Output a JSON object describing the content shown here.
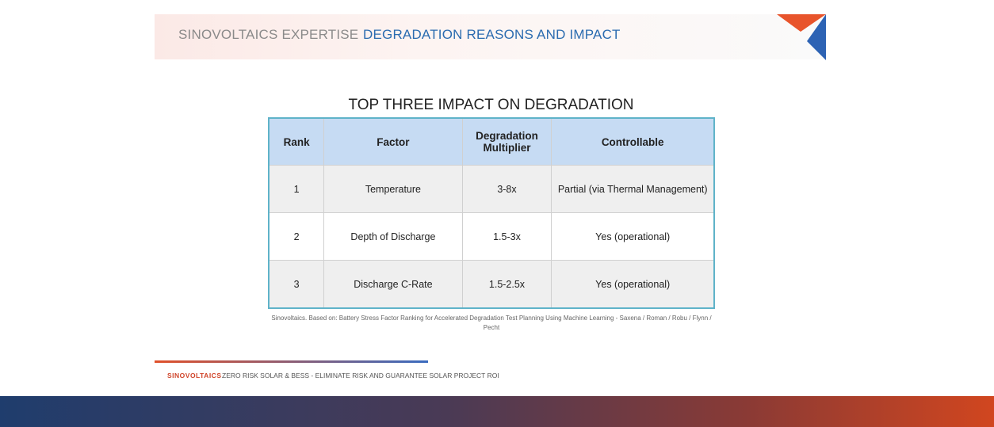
{
  "header": {
    "section": "SINOVOLTAICS EXPERTISE",
    "title": "DEGRADATION REASONS AND IMPACT"
  },
  "table": {
    "title": "TOP THREE IMPACT ON DEGRADATION",
    "columns": [
      "Rank",
      "Factor",
      "Degradation Multiplier",
      "Controllable"
    ],
    "rows": [
      [
        "1",
        "Temperature",
        "3-8x",
        "Partial (via Thermal Management)"
      ],
      [
        "2",
        "Depth of Discharge",
        "1.5-3x",
        "Yes (operational)"
      ],
      [
        "3",
        "Discharge C-Rate",
        "1.5-2.5x",
        "Yes (operational)"
      ]
    ],
    "source": "Sinovoltaics. Based on: Battery Stress Factor Ranking for Accelerated Degradation Test Planning Using Machine Learning - Saxena / Roman / Robu / Flynn / Pecht"
  },
  "footer": {
    "brand": "SINOVOLTAICS",
    "tagline": "ZERO RISK SOLAR & BESS - ELIMINATE RISK AND GUARANTEE SOLAR PROJECT ROI"
  }
}
